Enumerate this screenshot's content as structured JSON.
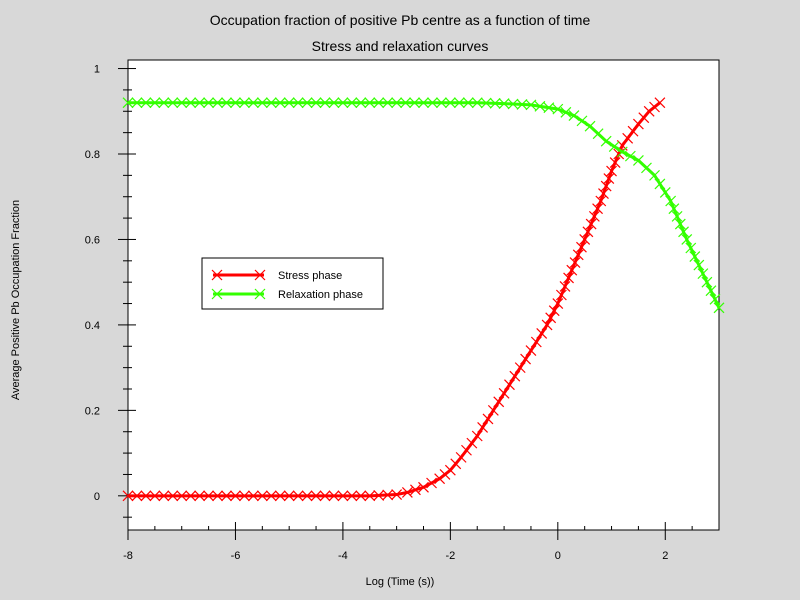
{
  "chart_data": {
    "type": "line",
    "title": "Occupation fraction of positive Pb centre as a function of time",
    "subtitle": "Stress and relaxation curves",
    "xlabel": "Log (Time (s))",
    "ylabel": "Average Positive Pb Occupation Fraction",
    "xlim": [
      -8,
      3
    ],
    "ylim": [
      -0.08,
      1.02
    ],
    "x_ticks": [
      -8,
      -6,
      -4,
      -2,
      0,
      2
    ],
    "y_ticks": [
      0,
      0.2,
      0.4,
      0.6,
      0.8,
      1
    ],
    "x_tick_labels": [
      "-8",
      "-6",
      "-4",
      "-2",
      "0",
      "2"
    ],
    "y_tick_labels": [
      "0",
      "0.2",
      "0.4",
      "0.6",
      "0.8",
      "1"
    ],
    "grid": false,
    "legend_position": "left-middle",
    "series": [
      {
        "name": "Stress phase",
        "color": "#ff0000",
        "marker": "x",
        "x": [
          -8,
          -7,
          -6,
          -5,
          -4,
          -3.5,
          -3,
          -2.8,
          -2.5,
          -2.2,
          -2,
          -1.8,
          -1.5,
          -1.2,
          -1,
          -0.8,
          -0.5,
          -0.2,
          0,
          0.2,
          0.5,
          0.8,
          1,
          1.2,
          1.5,
          1.7,
          1.9
        ],
        "y": [
          0,
          0,
          0,
          0,
          0,
          0,
          0.003,
          0.008,
          0.02,
          0.04,
          0.06,
          0.09,
          0.14,
          0.2,
          0.24,
          0.28,
          0.34,
          0.4,
          0.45,
          0.51,
          0.6,
          0.69,
          0.76,
          0.82,
          0.87,
          0.9,
          0.92
        ]
      },
      {
        "name": "Relaxation phase",
        "color": "#33ff00",
        "marker": "x",
        "x": [
          -8,
          -7,
          -6,
          -5,
          -4,
          -3,
          -2,
          -1.5,
          -1,
          -0.5,
          0,
          0.3,
          0.6,
          0.9,
          1.2,
          1.5,
          1.8,
          2.1,
          2.4,
          2.7,
          3
        ],
        "y": [
          0.92,
          0.92,
          0.92,
          0.92,
          0.92,
          0.92,
          0.92,
          0.92,
          0.918,
          0.915,
          0.905,
          0.89,
          0.865,
          0.83,
          0.805,
          0.785,
          0.75,
          0.69,
          0.6,
          0.52,
          0.44
        ]
      }
    ]
  }
}
